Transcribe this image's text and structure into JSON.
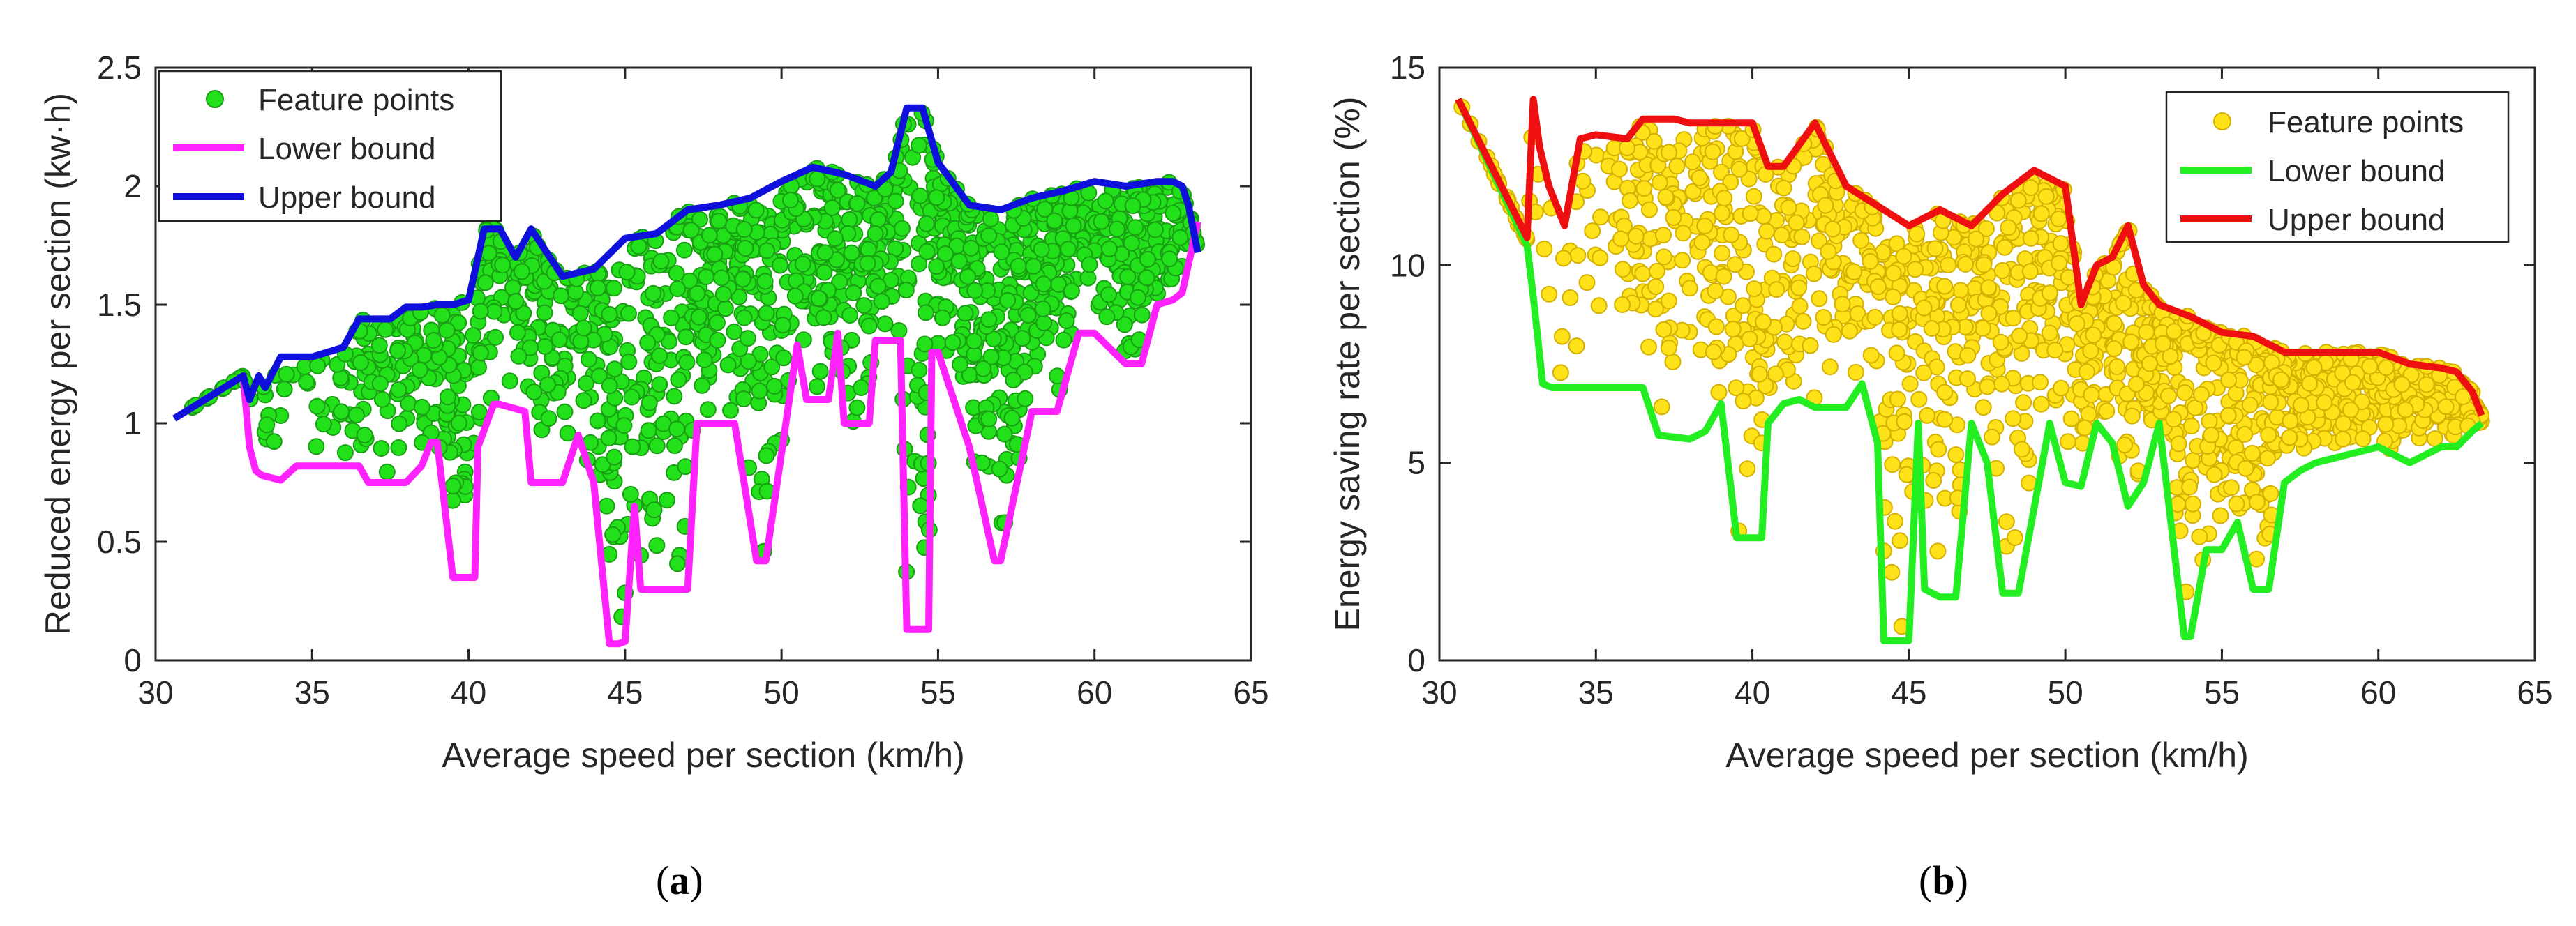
{
  "chart_data": [
    {
      "type": "scatter",
      "panel_label": "(a)",
      "panel_letter": "a",
      "xlabel": "Average speed per section (km/h)",
      "ylabel": "Reduced energy per section (kw·h)",
      "xlim": [
        30,
        65
      ],
      "ylim": [
        0,
        2.5
      ],
      "xticks": [
        30,
        35,
        40,
        45,
        50,
        55,
        60,
        65
      ],
      "yticks": [
        0,
        0.5,
        1,
        1.5,
        2,
        2.5
      ],
      "ytick_labels": [
        "0",
        "0.5",
        "1",
        "1.5",
        "2",
        "2.5"
      ],
      "legend": [
        "Feature points",
        "Lower bound",
        "Upper bound"
      ],
      "legend_position": "top-left",
      "colors": {
        "points": "#22e01a",
        "points_edge": "#1a9e14",
        "lower": "#ff22ff",
        "upper": "#1010dd"
      },
      "lower_bound": {
        "x": [
          30.6,
          32.8,
          33.0,
          33.2,
          33.4,
          34.0,
          34.5,
          35.0,
          36.5,
          36.8,
          38.0,
          38.5,
          38.8,
          39.0,
          39.5,
          40.2,
          40.3,
          40.8,
          41.0,
          41.8,
          42.0,
          43.0,
          43.5,
          44.0,
          44.5,
          44.8,
          45.0,
          45.3,
          45.5,
          46.0,
          47.0,
          47.3,
          48.5,
          49.2,
          49.5,
          50.5,
          50.8,
          51.5,
          51.8,
          52.0,
          52.8,
          53.0,
          53.8,
          54.0,
          54.7,
          54.8,
          55.0,
          56.0,
          56.8,
          57.0,
          58.0,
          58.8,
          59.5,
          60.0,
          61.0,
          61.5,
          62.0,
          62.5,
          62.8,
          63.3
        ],
        "y": [
          1.02,
          1.2,
          0.9,
          0.8,
          0.78,
          0.76,
          0.82,
          0.82,
          0.82,
          0.75,
          0.75,
          0.82,
          0.92,
          0.92,
          0.35,
          0.35,
          0.9,
          1.08,
          1.08,
          1.05,
          0.75,
          0.75,
          0.95,
          0.75,
          0.07,
          0.07,
          0.08,
          0.65,
          0.3,
          0.3,
          0.3,
          1.0,
          1.0,
          0.42,
          0.42,
          1.33,
          1.1,
          1.1,
          1.38,
          1.0,
          1.0,
          1.35,
          1.35,
          0.13,
          0.13,
          1.3,
          1.3,
          0.9,
          0.42,
          0.42,
          1.05,
          1.05,
          1.38,
          1.38,
          1.25,
          1.25,
          1.5,
          1.52,
          1.55,
          1.85
        ]
      },
      "upper_bound": {
        "x": [
          30.6,
          32.8,
          33.0,
          33.3,
          33.5,
          34.0,
          35.0,
          35.5,
          36.0,
          36.5,
          37.5,
          38.0,
          38.5,
          39.0,
          39.5,
          40.0,
          40.5,
          41.0,
          41.5,
          42.0,
          43.0,
          44.0,
          45.0,
          46.0,
          47.0,
          48.0,
          49.0,
          50.0,
          51.0,
          52.0,
          53.0,
          53.5,
          54.0,
          54.5,
          55.0,
          56.0,
          57.0,
          58.0,
          59.0,
          60.0,
          61.0,
          62.0,
          62.5,
          62.8,
          63.0,
          63.3
        ],
        "y": [
          1.02,
          1.2,
          1.1,
          1.2,
          1.15,
          1.28,
          1.28,
          1.3,
          1.32,
          1.44,
          1.44,
          1.49,
          1.49,
          1.5,
          1.5,
          1.52,
          1.82,
          1.82,
          1.7,
          1.82,
          1.62,
          1.65,
          1.78,
          1.8,
          1.9,
          1.92,
          1.95,
          2.02,
          2.08,
          2.05,
          2.0,
          2.06,
          2.33,
          2.33,
          2.1,
          1.92,
          1.9,
          1.95,
          1.98,
          2.02,
          2.0,
          2.02,
          2.02,
          2.0,
          1.92,
          1.72
        ]
      },
      "points_summary": {
        "approx_count": 1500,
        "x_range": [
          30.6,
          63.3
        ]
      }
    },
    {
      "type": "scatter",
      "panel_label": "(b)",
      "panel_letter": "b",
      "xlabel": "Average speed per section (km/h)",
      "ylabel": "Energy saving rate per section (%)",
      "xlim": [
        30,
        65
      ],
      "ylim": [
        0,
        15
      ],
      "xticks": [
        30,
        35,
        40,
        45,
        50,
        55,
        60,
        65
      ],
      "yticks": [
        0,
        5,
        10,
        15
      ],
      "ytick_labels": [
        "0",
        "5",
        "10",
        "15"
      ],
      "legend": [
        "Feature points",
        "Lower bound",
        "Upper bound"
      ],
      "legend_position": "top-right",
      "colors": {
        "points": "#ffe21a",
        "points_edge": "#d4b000",
        "lower": "#22ee22",
        "upper": "#ee1010"
      },
      "lower_bound": {
        "x": [
          30.6,
          32.8,
          33.0,
          33.3,
          33.6,
          35.0,
          36.5,
          37.0,
          38.0,
          38.5,
          39.0,
          39.5,
          40.3,
          40.5,
          41.0,
          41.5,
          42.0,
          43.0,
          43.5,
          44.0,
          44.2,
          45.0,
          45.3,
          45.5,
          46.0,
          46.5,
          47.0,
          47.5,
          48.0,
          48.5,
          49.5,
          50.0,
          50.5,
          51.0,
          51.5,
          52.0,
          52.5,
          53.0,
          53.8,
          54.0,
          54.5,
          55.0,
          55.5,
          56.0,
          56.5,
          57.0,
          57.5,
          58.0,
          59.0,
          59.5,
          60.0,
          61.0,
          62.0,
          62.5,
          63.0,
          63.3
        ],
        "y": [
          14.2,
          10.5,
          9.2,
          7.0,
          6.9,
          6.9,
          6.9,
          5.7,
          5.6,
          5.8,
          6.5,
          3.1,
          3.1,
          6.0,
          6.5,
          6.6,
          6.4,
          6.4,
          7.0,
          5.5,
          0.5,
          0.5,
          6.0,
          1.8,
          1.6,
          1.6,
          6.0,
          5.0,
          1.7,
          1.7,
          6.0,
          4.5,
          4.4,
          6.0,
          5.5,
          3.9,
          4.5,
          6.0,
          0.6,
          0.6,
          2.8,
          2.8,
          3.5,
          1.8,
          1.8,
          4.5,
          4.8,
          5.0,
          5.2,
          5.3,
          5.4,
          5.0,
          5.4,
          5.4,
          5.8,
          6.0
        ]
      },
      "upper_bound": {
        "x": [
          30.6,
          32.8,
          33.0,
          33.2,
          33.5,
          34.0,
          34.5,
          35.0,
          36.0,
          36.5,
          37.5,
          38.0,
          39.0,
          40.0,
          40.5,
          41.0,
          42.0,
          43.0,
          44.0,
          45.0,
          46.0,
          47.0,
          48.0,
          49.0,
          50.0,
          50.5,
          51.0,
          51.5,
          52.0,
          52.5,
          53.0,
          54.0,
          55.0,
          56.0,
          57.0,
          58.0,
          59.0,
          60.0,
          61.0,
          62.0,
          62.5,
          63.0,
          63.3
        ],
        "y": [
          14.2,
          10.7,
          14.2,
          13.0,
          12.0,
          11.0,
          13.2,
          13.3,
          13.2,
          13.7,
          13.7,
          13.6,
          13.6,
          13.6,
          12.5,
          12.5,
          13.6,
          12.0,
          11.5,
          11.0,
          11.4,
          11.0,
          11.8,
          12.4,
          12.0,
          9.0,
          10.0,
          10.2,
          11.0,
          9.5,
          9.0,
          8.7,
          8.3,
          8.2,
          7.8,
          7.8,
          7.8,
          7.8,
          7.5,
          7.4,
          7.3,
          6.8,
          6.2
        ]
      },
      "points_summary": {
        "approx_count": 1500,
        "x_range": [
          30.6,
          63.3
        ]
      }
    }
  ]
}
